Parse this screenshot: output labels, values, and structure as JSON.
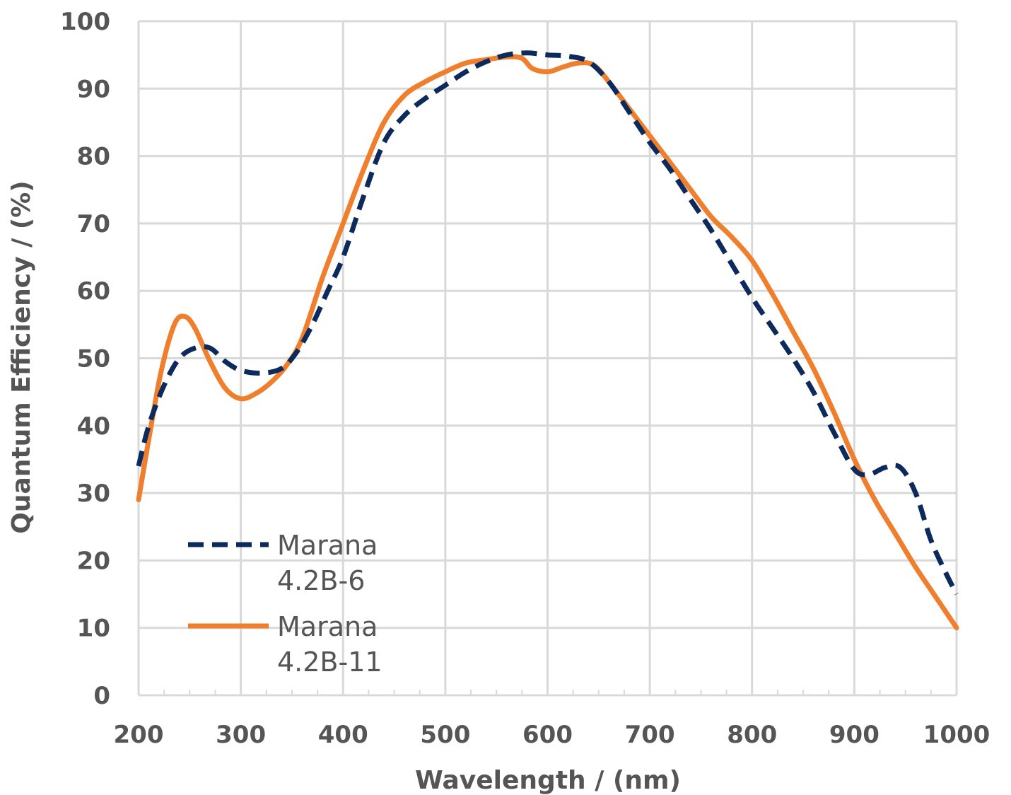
{
  "chart_data": {
    "type": "line",
    "xlabel": "Wavelength / (nm)",
    "ylabel": "Quantum Efficiency / (%)",
    "xlim": [
      200,
      1000
    ],
    "ylim": [
      0,
      100
    ],
    "xticks": [
      200,
      300,
      400,
      500,
      600,
      700,
      800,
      900,
      1000
    ],
    "yticks": [
      0,
      10,
      20,
      30,
      40,
      50,
      60,
      70,
      80,
      90,
      100
    ],
    "grid": true,
    "legend_position": "bottom-left",
    "series": [
      {
        "name": "Marana 4.2B-6",
        "legend_lines": [
          "Marana",
          "4.2B-6"
        ],
        "color": "#0d2a5c",
        "style": "dashed",
        "x": [
          200,
          210,
          225,
          240,
          255,
          270,
          285,
          300,
          320,
          340,
          355,
          370,
          385,
          400,
          420,
          440,
          460,
          480,
          500,
          520,
          540,
          560,
          580,
          600,
          620,
          640,
          660,
          680,
          700,
          720,
          740,
          760,
          780,
          800,
          820,
          840,
          860,
          880,
          900,
          915,
          930,
          945,
          960,
          975,
          990,
          1000
        ],
        "y": [
          34,
          40,
          46,
          50,
          51.5,
          51.5,
          49.5,
          48.2,
          47.8,
          48.5,
          51,
          55,
          60,
          65,
          74,
          82,
          86,
          88.5,
          90.5,
          92.5,
          94,
          95,
          95.3,
          95,
          94.8,
          94,
          91,
          86.5,
          82,
          78,
          73.5,
          69,
          64,
          59,
          54.5,
          50,
          45,
          39,
          33.5,
          32.8,
          33.8,
          33.8,
          30,
          23,
          18,
          15
        ]
      },
      {
        "name": "Marana 4.2B-11",
        "legend_lines": [
          "Marana",
          "4.2B-11"
        ],
        "color": "#f07f2d",
        "style": "solid",
        "x": [
          200,
          210,
          222,
          235,
          245,
          255,
          270,
          285,
          300,
          315,
          330,
          345,
          360,
          380,
          400,
          420,
          440,
          460,
          480,
          500,
          520,
          540,
          560,
          575,
          585,
          600,
          615,
          630,
          645,
          660,
          680,
          700,
          720,
          740,
          760,
          780,
          800,
          820,
          840,
          860,
          880,
          900,
          920,
          940,
          960,
          980,
          1000
        ],
        "y": [
          29,
          38,
          48,
          55,
          56.2,
          54.5,
          49.5,
          45.5,
          44,
          44.8,
          46.5,
          49,
          53,
          62,
          70,
          78,
          85,
          89,
          91,
          92.5,
          93.8,
          94.3,
          94.7,
          94.5,
          93,
          92.5,
          93.2,
          93.8,
          93.5,
          91,
          87,
          83,
          79,
          75,
          71,
          68,
          64.5,
          59.5,
          54,
          48.5,
          42,
          35,
          29,
          24,
          19,
          14.5,
          10
        ]
      }
    ]
  },
  "colors": {
    "grid": "#d9d9d9",
    "text": "#555555",
    "background": "#ffffff"
  }
}
